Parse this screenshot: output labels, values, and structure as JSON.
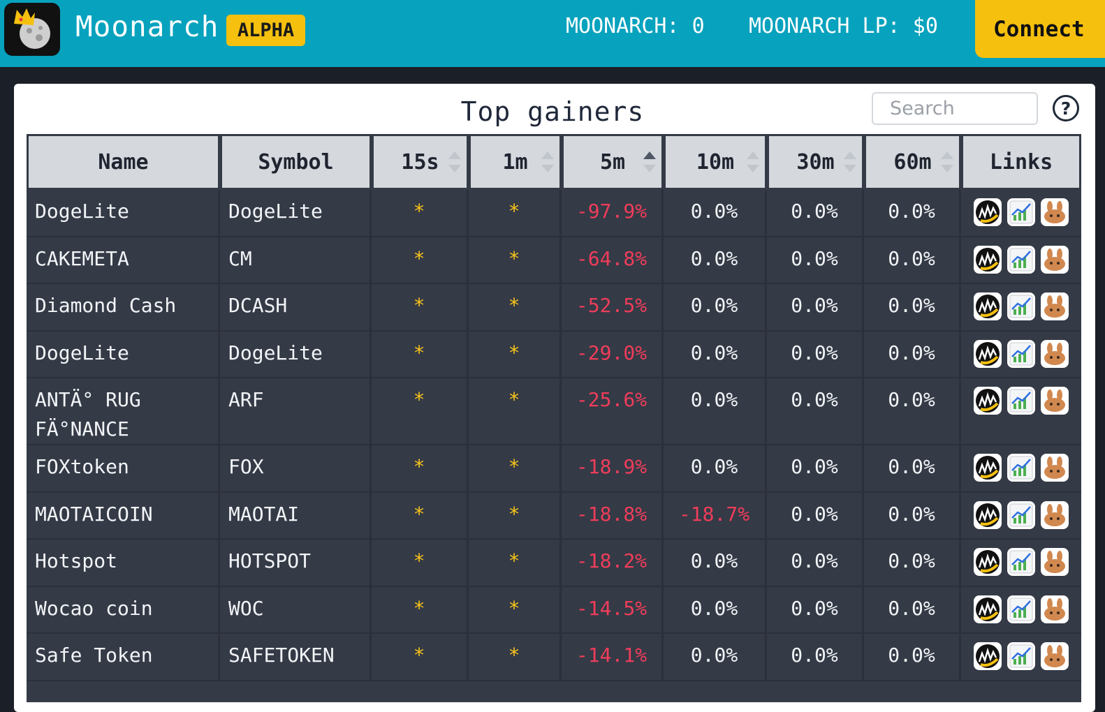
{
  "header": {
    "brand": "Moonarch",
    "badge": "ALPHA",
    "stat_moonarch": "MOONARCH: 0",
    "stat_lp": "MOONARCH LP: $0",
    "connect_label": "Connect"
  },
  "panel": {
    "title": "Top gainers",
    "search_placeholder": "Search",
    "help_label": "?"
  },
  "table": {
    "columns": [
      "Name",
      "Symbol",
      "15s",
      "1m",
      "5m",
      "10m",
      "30m",
      "60m",
      "Links"
    ],
    "active_sort": "5m",
    "rows": [
      {
        "name": "DogeLite",
        "symbol": "DogeLite",
        "s15": "*",
        "m1": "*",
        "m5": "-97.9%",
        "m10": "0.0%",
        "m30": "0.0%",
        "m60": "0.0%"
      },
      {
        "name": "CAKEMETA",
        "symbol": "CM",
        "s15": "*",
        "m1": "*",
        "m5": "-64.8%",
        "m10": "0.0%",
        "m30": "0.0%",
        "m60": "0.0%"
      },
      {
        "name": "Diamond Cash",
        "symbol": "DCASH",
        "s15": "*",
        "m1": "*",
        "m5": "-52.5%",
        "m10": "0.0%",
        "m30": "0.0%",
        "m60": "0.0%"
      },
      {
        "name": "DogeLite",
        "symbol": "DogeLite",
        "s15": "*",
        "m1": "*",
        "m5": "-29.0%",
        "m10": "0.0%",
        "m30": "0.0%",
        "m60": "0.0%"
      },
      {
        "name": "ANTÄ° RUG FÄ°NANCE",
        "symbol": "ARF",
        "s15": "*",
        "m1": "*",
        "m5": "-25.6%",
        "m10": "0.0%",
        "m30": "0.0%",
        "m60": "0.0%"
      },
      {
        "name": "FOXtoken",
        "symbol": "FOX",
        "s15": "*",
        "m1": "*",
        "m5": "-18.9%",
        "m10": "0.0%",
        "m30": "0.0%",
        "m60": "0.0%"
      },
      {
        "name": "MAOTAICOIN",
        "symbol": "MAOTAI",
        "s15": "*",
        "m1": "*",
        "m5": "-18.8%",
        "m10": "-18.7%",
        "m30": "0.0%",
        "m60": "0.0%"
      },
      {
        "name": "Hotspot",
        "symbol": "HOTSPOT",
        "s15": "*",
        "m1": "*",
        "m5": "-18.2%",
        "m10": "0.0%",
        "m30": "0.0%",
        "m60": "0.0%"
      },
      {
        "name": "Wocao coin",
        "symbol": "WOC",
        "s15": "*",
        "m1": "*",
        "m5": "-14.5%",
        "m10": "0.0%",
        "m30": "0.0%",
        "m60": "0.0%"
      },
      {
        "name": "Safe Token",
        "symbol": "SAFETOKEN",
        "s15": "*",
        "m1": "*",
        "m5": "-14.1%",
        "m10": "0.0%",
        "m30": "0.0%",
        "m60": "0.0%"
      }
    ],
    "link_icons": [
      "poocoin-icon",
      "chart-icon",
      "pancakeswap-icon"
    ]
  },
  "colors": {
    "header_bg": "#07a2bd",
    "accent_yellow": "#f6c00f",
    "negative": "#ef3d5a",
    "table_bg": "#343a46"
  }
}
